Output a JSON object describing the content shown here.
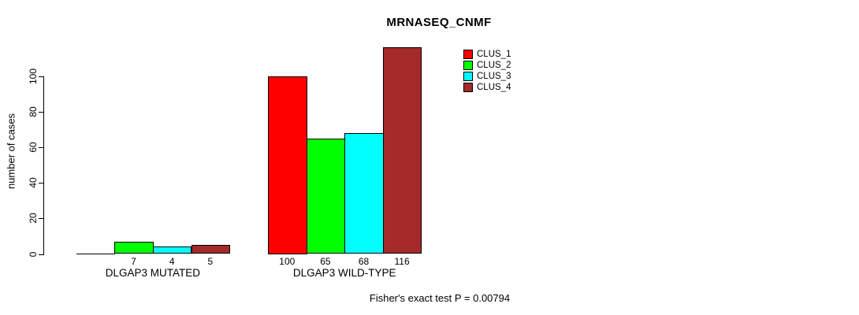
{
  "figure": {
    "background": "#FFFFFF",
    "text_color": "#000000"
  },
  "chart_data": {
    "type": "bar",
    "title": "MRNASEQ_CNMF",
    "ylabel": "number of cases",
    "xlabel": "",
    "groups": [
      "DLGAP3 MUTATED",
      "DLGAP3 WILD-TYPE"
    ],
    "series": [
      {
        "name": "CLUS_1",
        "color": "#FF0000",
        "values": [
          0,
          100
        ]
      },
      {
        "name": "CLUS_2",
        "color": "#00FF00",
        "values": [
          7,
          65
        ]
      },
      {
        "name": "CLUS_3",
        "color": "#00FFFF",
        "values": [
          4,
          68
        ]
      },
      {
        "name": "CLUS_4",
        "color": "#A52A2A",
        "values": [
          5,
          116
        ]
      }
    ],
    "yticks": [
      0,
      20,
      40,
      60,
      80,
      100
    ],
    "ylim": [
      0,
      116
    ],
    "grid": false,
    "bar_value_labels": true,
    "hide_zero_value_labels": true,
    "legend_position": "top-right",
    "footnote": "Fisher's exact test P = 0.00794"
  }
}
